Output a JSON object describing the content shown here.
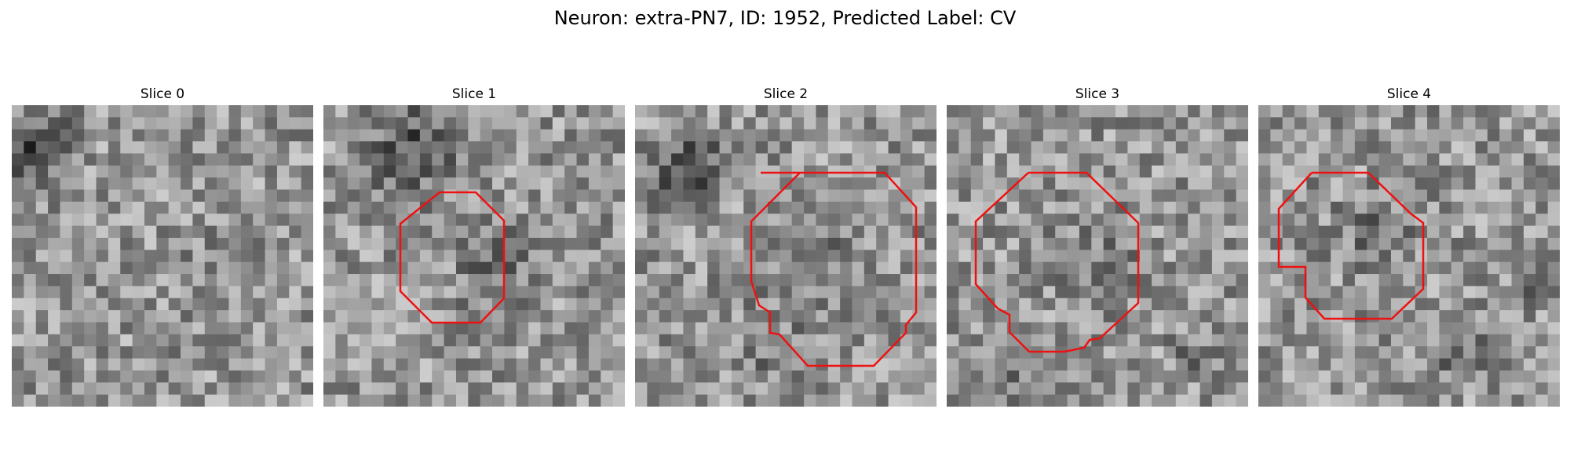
{
  "figure": {
    "title": "Neuron: extra-PN7, ID: 1952, Predicted Label: CV",
    "grid_size": 25,
    "contour_color": "#ee1111"
  },
  "panels": [
    {
      "title": "Slice 0",
      "has_contour": false
    },
    {
      "title": "Slice 1",
      "has_contour": true
    },
    {
      "title": "Slice 2",
      "has_contour": true
    },
    {
      "title": "Slice 3",
      "has_contour": true
    },
    {
      "title": "Slice 4",
      "has_contour": true
    }
  ]
}
